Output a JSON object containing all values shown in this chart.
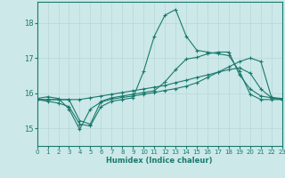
{
  "xlabel": "Humidex (Indice chaleur)",
  "background_color": "#cce8e8",
  "grid_color": "#b8d8d8",
  "line_color": "#1a7a6e",
  "xlim": [
    0,
    23
  ],
  "ylim": [
    14.5,
    18.6
  ],
  "yticks": [
    15,
    16,
    17,
    18
  ],
  "xticks": [
    0,
    1,
    2,
    3,
    4,
    5,
    6,
    7,
    8,
    9,
    10,
    11,
    12,
    13,
    14,
    15,
    16,
    17,
    18,
    19,
    20,
    21,
    22,
    23
  ],
  "series1_x": [
    0,
    1,
    2,
    3,
    4,
    5,
    6,
    7,
    8,
    9,
    10,
    11,
    12,
    13,
    14,
    15,
    16,
    17,
    18,
    19,
    20,
    21,
    22,
    23
  ],
  "series1_y": [
    15.85,
    15.9,
    15.85,
    15.55,
    14.97,
    15.55,
    15.75,
    15.83,
    15.88,
    15.92,
    15.97,
    16.02,
    16.08,
    16.13,
    16.2,
    16.3,
    16.45,
    16.6,
    16.75,
    16.9,
    17.0,
    16.9,
    15.88,
    15.85
  ],
  "series2_x": [
    0,
    1,
    2,
    3,
    4,
    5,
    6,
    7,
    8,
    9,
    10,
    11,
    12,
    13,
    14,
    15,
    16,
    17,
    18,
    19,
    20,
    21,
    22,
    23
  ],
  "series2_y": [
    15.82,
    15.82,
    15.82,
    15.82,
    15.82,
    15.87,
    15.92,
    15.97,
    16.02,
    16.07,
    16.12,
    16.17,
    16.22,
    16.3,
    16.37,
    16.45,
    16.52,
    16.6,
    16.67,
    16.72,
    16.57,
    16.12,
    15.87,
    15.82
  ],
  "series3_x": [
    0,
    1,
    2,
    3,
    4,
    5,
    6,
    7,
    8,
    9,
    10,
    11,
    12,
    13,
    14,
    15,
    16,
    17,
    18,
    19,
    20,
    21,
    22,
    23
  ],
  "series3_y": [
    15.82,
    15.77,
    15.72,
    15.62,
    15.12,
    15.07,
    15.62,
    15.77,
    15.82,
    15.87,
    16.62,
    17.62,
    18.22,
    18.38,
    17.62,
    17.22,
    17.17,
    17.12,
    17.07,
    16.62,
    15.97,
    15.82,
    15.82,
    15.82
  ],
  "series4_x": [
    0,
    1,
    2,
    3,
    4,
    5,
    6,
    7,
    8,
    9,
    10,
    11,
    12,
    13,
    14,
    15,
    16,
    17,
    18,
    19,
    20,
    21,
    22,
    23
  ],
  "series4_y": [
    15.82,
    15.82,
    15.82,
    15.82,
    15.22,
    15.12,
    15.77,
    15.87,
    15.92,
    15.97,
    16.02,
    16.07,
    16.32,
    16.67,
    16.97,
    17.02,
    17.12,
    17.17,
    17.17,
    16.52,
    16.12,
    15.92,
    15.87,
    15.82
  ]
}
